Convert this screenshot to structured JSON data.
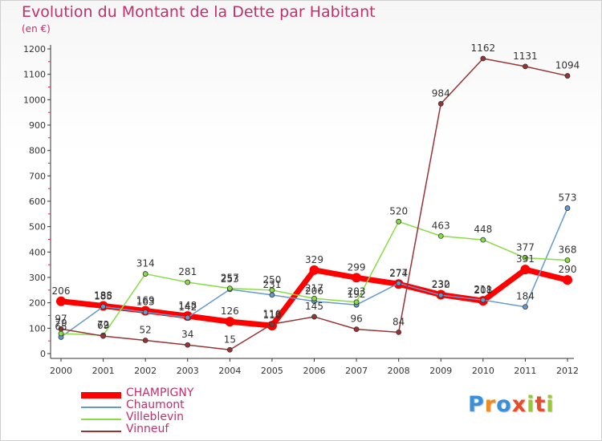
{
  "title": "Evolution du Montant de la Dette par Habitant",
  "unit": "(en €)",
  "logo": {
    "letters": [
      "P",
      "r",
      "o",
      "x",
      "i",
      "t",
      "i"
    ],
    "colors": [
      "#3a8fd8",
      "#f28a1c",
      "#3a8fd8",
      "#e84b2a",
      "#9bc63a",
      "#e84b2a",
      "#9bc63a"
    ]
  },
  "chart_data": {
    "type": "line",
    "x": [
      2000,
      2001,
      2002,
      2003,
      2004,
      2005,
      2006,
      2007,
      2008,
      2009,
      2010,
      2011,
      2012
    ],
    "y_ticks": [
      0,
      100,
      200,
      300,
      400,
      500,
      600,
      700,
      800,
      900,
      1000,
      1100,
      1200
    ],
    "ylim": [
      0,
      1200
    ],
    "grid": false,
    "legend_position": "bottom-left",
    "series": [
      {
        "name": "CHAMPIGNY",
        "color": "#ff0000",
        "values": [
          206,
          188,
          169,
          148,
          126,
          110,
          329,
          299,
          274,
          232,
          208,
          331,
          290
        ],
        "labels": [
          "206",
          "188",
          "169",
          "148",
          "126",
          "110",
          "329",
          "299",
          "274",
          "232",
          "208",
          "331",
          "290"
        ]
      },
      {
        "name": "Chaumont",
        "color": "#6699cc",
        "values": [
          65,
          185,
          163,
          142,
          253,
          231,
          206,
          192,
          277,
          230,
          211,
          184,
          573
        ],
        "labels": [
          "65",
          "185",
          "163",
          "142",
          "253",
          "231",
          "206",
          "192",
          "277",
          "230",
          "211",
          "184",
          "573"
        ]
      },
      {
        "name": "Villeblevin",
        "color": "#88dd44",
        "values": [
          79,
          72,
          314,
          281,
          257,
          250,
          217,
          203,
          520,
          463,
          448,
          377,
          368
        ],
        "labels": [
          "79",
          "72",
          "314",
          "281",
          "257",
          "250",
          "217",
          "203",
          "520",
          "463",
          "448",
          "377",
          "368"
        ]
      },
      {
        "name": "Vinneuf",
        "color": "#993333",
        "values": [
          97,
          69,
          52,
          34,
          15,
          116,
          145,
          96,
          84,
          984,
          1162,
          1131,
          1094
        ],
        "labels": [
          "97",
          "69",
          "52",
          "34",
          "15",
          "116",
          "145",
          "96",
          "84",
          "984",
          "1162",
          "1131",
          "1094"
        ]
      }
    ]
  }
}
